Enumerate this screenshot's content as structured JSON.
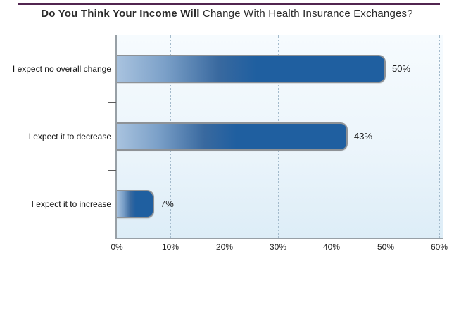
{
  "header": {
    "title_bold": "Do You Think Your Income Will",
    "title_regular": " Change With Health Insurance Exchanges?"
  },
  "colors": {
    "accent_line": "#522550",
    "bar_gradient_start": "#a9c3df",
    "bar_gradient_end": "#1f5fa0",
    "bar_border": "#8e9296",
    "axis": "#98a0a6",
    "gridline": "#a3bacb",
    "plot_bg_top": "#f6fbfe",
    "plot_bg_bottom": "#ddedf7",
    "text": "#1a1a1a"
  },
  "chart_data": {
    "type": "bar",
    "orientation": "horizontal",
    "title": "Do You Think Your Income Will Change With Health Insurance Exchanges?",
    "categories": [
      "I expect no overall change",
      "I expect it to decrease",
      "I expect it to increase"
    ],
    "values": [
      50,
      43,
      7
    ],
    "value_labels": [
      "50%",
      "43%",
      "7%"
    ],
    "x_tick_values": [
      0,
      10,
      20,
      30,
      40,
      50,
      60
    ],
    "x_tick_labels": [
      "0%",
      "10%",
      "20%",
      "30%",
      "40%",
      "50%",
      "60%"
    ],
    "xlim": [
      0,
      60
    ],
    "grid": "vertical-dotted",
    "legend": null
  }
}
